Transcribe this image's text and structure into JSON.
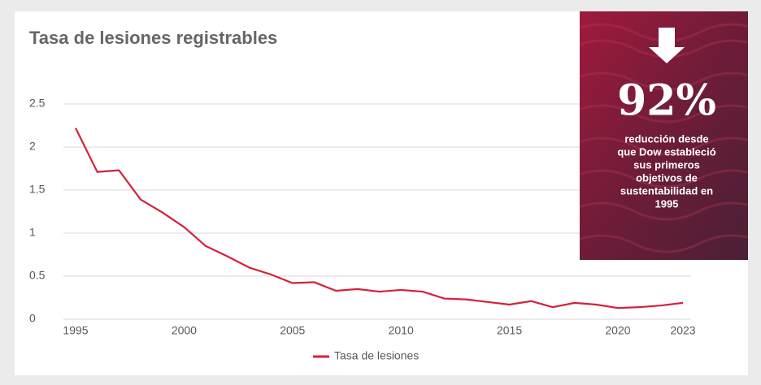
{
  "chart_data": {
    "type": "line",
    "title": "Tasa de lesiones registrables",
    "x": [
      1995,
      1996,
      1997,
      1998,
      1999,
      2000,
      2001,
      2002,
      2003,
      2004,
      2005,
      2006,
      2007,
      2008,
      2009,
      2010,
      2011,
      2012,
      2013,
      2014,
      2015,
      2016,
      2017,
      2018,
      2019,
      2020,
      2021,
      2022,
      2023
    ],
    "series": [
      {
        "name": "Tasa de lesiones",
        "color": "#d71f3c",
        "values": [
          2.22,
          1.71,
          1.73,
          1.39,
          1.24,
          1.07,
          0.85,
          0.73,
          0.6,
          0.52,
          0.42,
          0.43,
          0.33,
          0.35,
          0.32,
          0.34,
          0.32,
          0.24,
          0.23,
          0.2,
          0.17,
          0.21,
          0.14,
          0.19,
          0.17,
          0.13,
          0.14,
          0.16,
          0.19
        ]
      }
    ],
    "xlim": [
      1995,
      2023
    ],
    "xticks": [
      1995,
      2000,
      2005,
      2010,
      2015,
      2020,
      2023
    ],
    "ylim": [
      0,
      2.5
    ],
    "yticks": [
      0,
      0.5,
      1,
      1.5,
      2,
      2.5
    ],
    "grid": true,
    "legend": "bottom"
  },
  "callout": {
    "value": "92%",
    "lines": [
      "reducción  desde",
      "que Dow estableció",
      "sus primeros",
      "objetivos de",
      "sustentabilidad en",
      "1995"
    ]
  }
}
